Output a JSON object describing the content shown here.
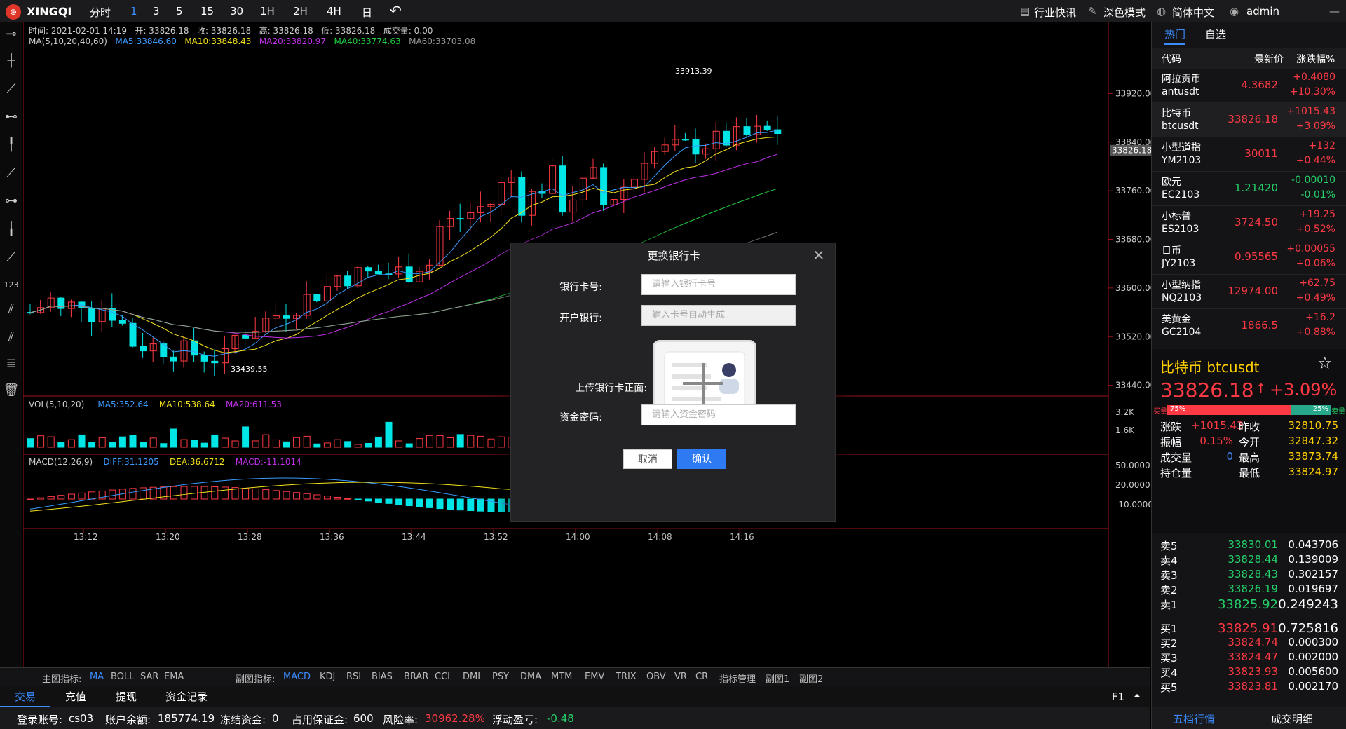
{
  "topbar": {
    "logo": "⊕",
    "brand": "XINGQI",
    "periods": [
      "分时",
      "1",
      "3",
      "5",
      "15",
      "30",
      "1H",
      "2H",
      "4H",
      "日"
    ],
    "active_period": "1",
    "back_icon": "undo-icon",
    "news": "行业快讯",
    "dark_mode": "深色模式",
    "language": "简体中文",
    "user": "admin",
    "minimize": "—"
  },
  "chart_info": {
    "time": "时间: 2021-02-01 14:19",
    "open": "开: 33826.18",
    "close": "收: 33826.18",
    "high": "高: 33826.18",
    "low": "低: 33826.18",
    "volume": "成交量: 0.00",
    "ma_label": "MA(5,10,20,40,60)",
    "ma5": "MA5:33846.60",
    "ma10": "MA10:33848.43",
    "ma20": "MA20:33820.97",
    "ma40": "MA40:33774.63",
    "ma60": "MA60:33703.08",
    "vol_label": "VOL(5,10,20)",
    "vol_ma5": "MA5:352.64",
    "vol_ma10": "MA10:538.64",
    "vol_ma20": "MA20:611.53",
    "macd_label": "MACD(12,26,9)",
    "diff": "DIFF:31.1205",
    "dea": "DEA:36.6712",
    "macd": "MACD:-11.1014",
    "max_label": "33913.39",
    "min_label": "33439.55",
    "last_price_tag": "33826.18"
  },
  "chart_data": {
    "type": "candlestick",
    "y_ticks": [
      "33920.00",
      "33840.00",
      "33760.00",
      "33680.00",
      "33600.00",
      "33520.00",
      "33440.00"
    ],
    "y_tick_values": [
      33920,
      33840,
      33760,
      33680,
      33600,
      33520,
      33440
    ],
    "vol_ticks": [
      "3.2K",
      "1.6K"
    ],
    "macd_ticks": [
      "50.0000",
      "20.0000",
      "-10.0000"
    ],
    "x_labels": [
      "13:12",
      "13:20",
      "13:28",
      "13:36",
      "13:44",
      "13:52",
      "14:00",
      "14:08",
      "14:16"
    ],
    "ylim": [
      33420,
      33985
    ]
  },
  "indicators": {
    "main_label": "主图指标:",
    "main": [
      "MA",
      "BOLL",
      "SAR",
      "EMA"
    ],
    "active_main": "MA",
    "sub_label": "副图指标:",
    "sub": [
      "MACD",
      "KDJ",
      "RSI",
      "BIAS",
      "BRAR",
      "CCI",
      "DMI",
      "PSY",
      "DMA",
      "MTM",
      "EMV",
      "TRIX",
      "OBV",
      "VR",
      "CR",
      "指标管理",
      "副图1",
      "副图2"
    ],
    "active_sub": "MACD"
  },
  "bottom_tabs": [
    "交易",
    "充值",
    "提现",
    "资金记录"
  ],
  "bottom_right": "F1",
  "status": {
    "account_label": "登录账号:",
    "account": "cs03",
    "balance_label": "账户余额:",
    "balance": "185774.19",
    "frozen_label": "冻结资金:",
    "frozen": "0",
    "margin_label": "占用保证金:",
    "margin": "600",
    "risk_label": "风险率:",
    "risk": "30962.28%",
    "pnl_label": "浮动盈亏:",
    "pnl": "-0.48"
  },
  "right": {
    "tabs": [
      "热门",
      "自选"
    ],
    "headers": [
      "代码",
      "最新价",
      "涨跌幅%"
    ],
    "markets": [
      {
        "name": "阿拉贡币",
        "code": "antusdt",
        "price": "4.3682",
        "chg": "+0.4080",
        "pct": "+10.30%",
        "up": true
      },
      {
        "name": "比特币",
        "code": "btcusdt",
        "price": "33826.18",
        "chg": "+1015.43",
        "pct": "+3.09%",
        "up": true
      },
      {
        "name": "小型道指",
        "code": "YM2103",
        "price": "30011",
        "chg": "+132",
        "pct": "+0.44%",
        "up": true
      },
      {
        "name": "欧元",
        "code": "EC2103",
        "price": "1.21420",
        "chg": "-0.00010",
        "pct": "-0.01%",
        "up": false
      },
      {
        "name": "小标普",
        "code": "ES2103",
        "price": "3724.50",
        "chg": "+19.25",
        "pct": "+0.52%",
        "up": true
      },
      {
        "name": "日币",
        "code": "JY2103",
        "price": "0.95565",
        "chg": "+0.00055",
        "pct": "+0.06%",
        "up": true
      },
      {
        "name": "小型纳指",
        "code": "NQ2103",
        "price": "12974.00",
        "chg": "+62.75",
        "pct": "+0.49%",
        "up": true
      },
      {
        "name": "美黄金",
        "code": "GC2104",
        "price": "1866.5",
        "chg": "+16.2",
        "pct": "+0.88%",
        "up": true
      }
    ],
    "detail": {
      "title": "比特币  btcusdt",
      "price": "33826.18",
      "arrow": "↑",
      "pct": "+3.09%",
      "buy_label": "买量",
      "sell_label": "卖量",
      "buy_pct": "75%",
      "sell_pct": "25%",
      "buy_ratio": 0.75,
      "rows": [
        {
          "l1": "涨跌",
          "v1": "+1015.43",
          "l2": "昨收",
          "v2": "32810.75"
        },
        {
          "l1": "振幅",
          "v1": "0.15%",
          "l2": "今开",
          "v2": "32847.32"
        },
        {
          "l1": "成交量",
          "v1": "0",
          "l2": "最高",
          "v2": "33873.74"
        },
        {
          "l1": "持仓量",
          "v1": "",
          "l2": "最低",
          "v2": "33824.97"
        }
      ]
    },
    "asks": [
      {
        "l": "卖5",
        "p": "33830.01",
        "v": "0.043706"
      },
      {
        "l": "卖4",
        "p": "33828.44",
        "v": "0.139009"
      },
      {
        "l": "卖3",
        "p": "33828.43",
        "v": "0.302157"
      },
      {
        "l": "卖2",
        "p": "33826.19",
        "v": "0.019697"
      },
      {
        "l": "卖1",
        "p": "33825.92",
        "v": "0.249243"
      }
    ],
    "bids": [
      {
        "l": "买1",
        "p": "33825.91",
        "v": "0.725816"
      },
      {
        "l": "买2",
        "p": "33824.74",
        "v": "0.000300"
      },
      {
        "l": "买3",
        "p": "33824.47",
        "v": "0.002000"
      },
      {
        "l": "买4",
        "p": "33823.93",
        "v": "0.005600"
      },
      {
        "l": "买5",
        "p": "33823.81",
        "v": "0.002170"
      }
    ],
    "footer_tabs": [
      "五档行情",
      "成交明细"
    ]
  },
  "dialog": {
    "title": "更换银行卡",
    "card_label": "银行卡号:",
    "card_placeholder": "请输入银行卡号",
    "bank_label": "开户银行:",
    "bank_placeholder": "输入卡号自动生成",
    "upload_label": "上传银行卡正面:",
    "password_label": "资金密码:",
    "password_placeholder": "请输入资金密码",
    "cancel": "取消",
    "confirm": "确认"
  }
}
